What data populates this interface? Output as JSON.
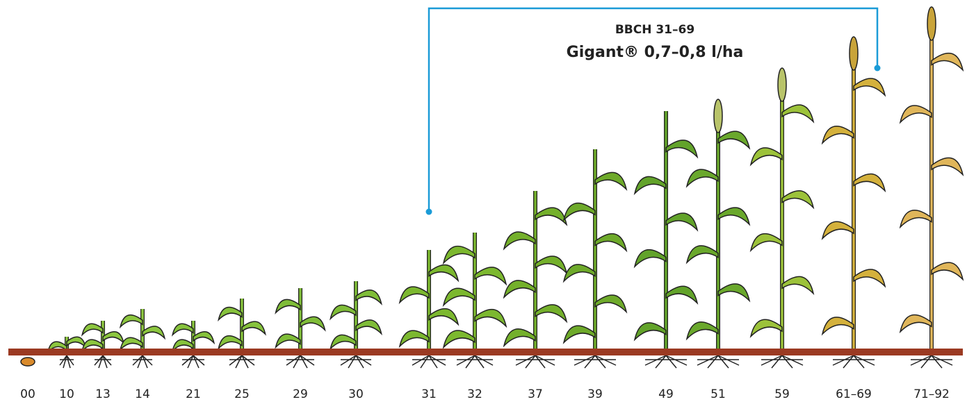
{
  "bracket": {
    "title": "BBCH 31–69",
    "subtitle": "Gigant® 0,7–0,8 l/ha"
  },
  "stages": [
    "00",
    "10",
    "13",
    "14",
    "21",
    "25",
    "29",
    "30",
    "31",
    "32",
    "37",
    "39",
    "49",
    "51",
    "59",
    "61–69",
    "71–92"
  ]
}
